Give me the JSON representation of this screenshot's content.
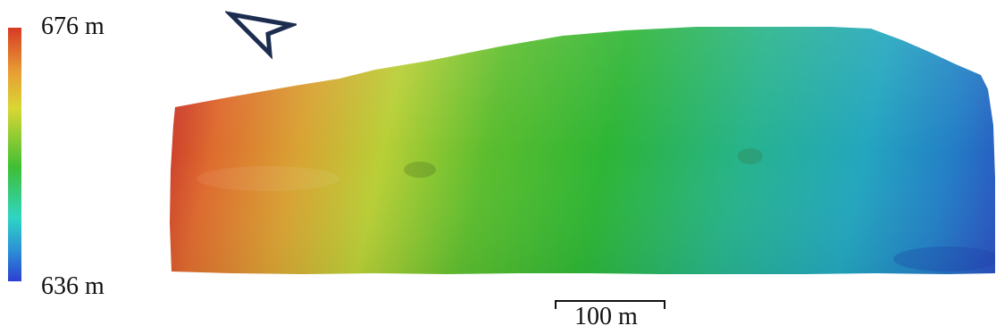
{
  "legend": {
    "max_label": "676 m",
    "min_label": "636 m",
    "colors": [
      "#d73a25",
      "#e8a034",
      "#d9d733",
      "#3fbf34",
      "#2fd5c4",
      "#2b8fd7",
      "#2c3fd2"
    ]
  },
  "scale": {
    "label": "100 m"
  },
  "north_arrow": {
    "icon": "north-arrow-icon",
    "color": "#1c2d4f"
  }
}
